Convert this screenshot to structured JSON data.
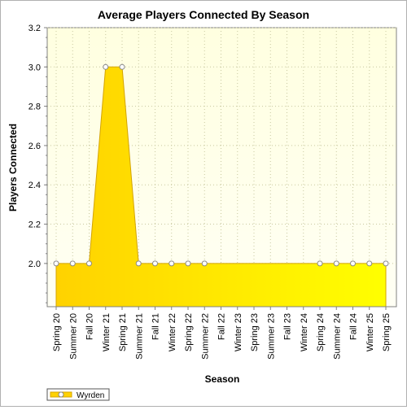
{
  "chart_data": {
    "type": "area",
    "title": "Average Players Connected By Season",
    "xlabel": "Season",
    "ylabel": "Players Connected",
    "categories": [
      "Spring 20",
      "Summer 20",
      "Fall 20",
      "Winter 21",
      "Spring 21",
      "Summer 21",
      "Fall 21",
      "Winter 22",
      "Spring 22",
      "Summer 22",
      "Fall 22",
      "Winter 23",
      "Spring 23",
      "Summer 23",
      "Fall 23",
      "Winter 24",
      "Spring 24",
      "Summer 24",
      "Fall 24",
      "Winter 25",
      "Spring 25"
    ],
    "series": [
      {
        "name": "Wyrden",
        "values": [
          2.0,
          2.0,
          2.0,
          3.0,
          3.0,
          2.0,
          2.0,
          2.0,
          2.0,
          2.0,
          2.0,
          2.0,
          2.0,
          2.0,
          2.0,
          2.0,
          2.0,
          2.0,
          2.0,
          2.0,
          2.0
        ],
        "markers": [
          true,
          true,
          true,
          true,
          true,
          true,
          true,
          true,
          true,
          true,
          false,
          false,
          false,
          false,
          false,
          false,
          true,
          true,
          true,
          true,
          true
        ]
      }
    ],
    "ylim": [
      1.78,
      3.2
    ],
    "yticks": [
      2.0,
      2.2,
      2.4,
      2.6,
      2.8,
      3.0,
      3.2
    ],
    "grid": true,
    "legend_position": "bottom-left",
    "colors": {
      "plot_background_top": "#ffffe0",
      "plot_background_bottom": "#fffff4",
      "area_fill_left": "#ffd200",
      "area_fill_right": "#ffff00",
      "area_edge": "#d4a400",
      "grid": "#c8c8a0",
      "marker_fill": "#ffffff",
      "marker_stroke": "#888888"
    }
  }
}
